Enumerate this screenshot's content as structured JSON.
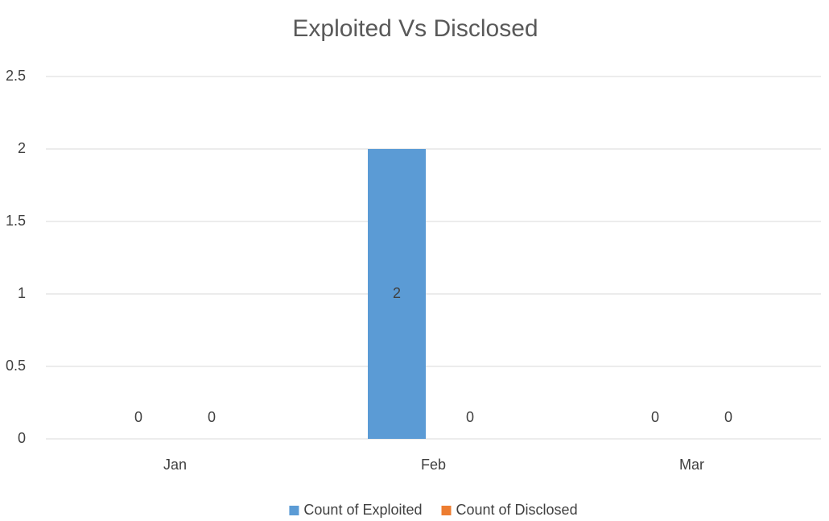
{
  "chart_data": {
    "type": "bar",
    "title": "Exploited Vs Disclosed",
    "categories": [
      "Jan",
      "Feb",
      "Mar"
    ],
    "series": [
      {
        "name": "Count of Exploited",
        "color": "#5b9bd5",
        "values": [
          0,
          2,
          0
        ]
      },
      {
        "name": "Count of Disclosed",
        "color": "#ed7d31",
        "values": [
          0,
          0,
          0
        ]
      }
    ],
    "ylim": [
      0,
      2.5
    ],
    "yticks": [
      0,
      0.5,
      1,
      1.5,
      2,
      2.5
    ],
    "grid": true,
    "data_labels": true,
    "legend": "bottom"
  }
}
